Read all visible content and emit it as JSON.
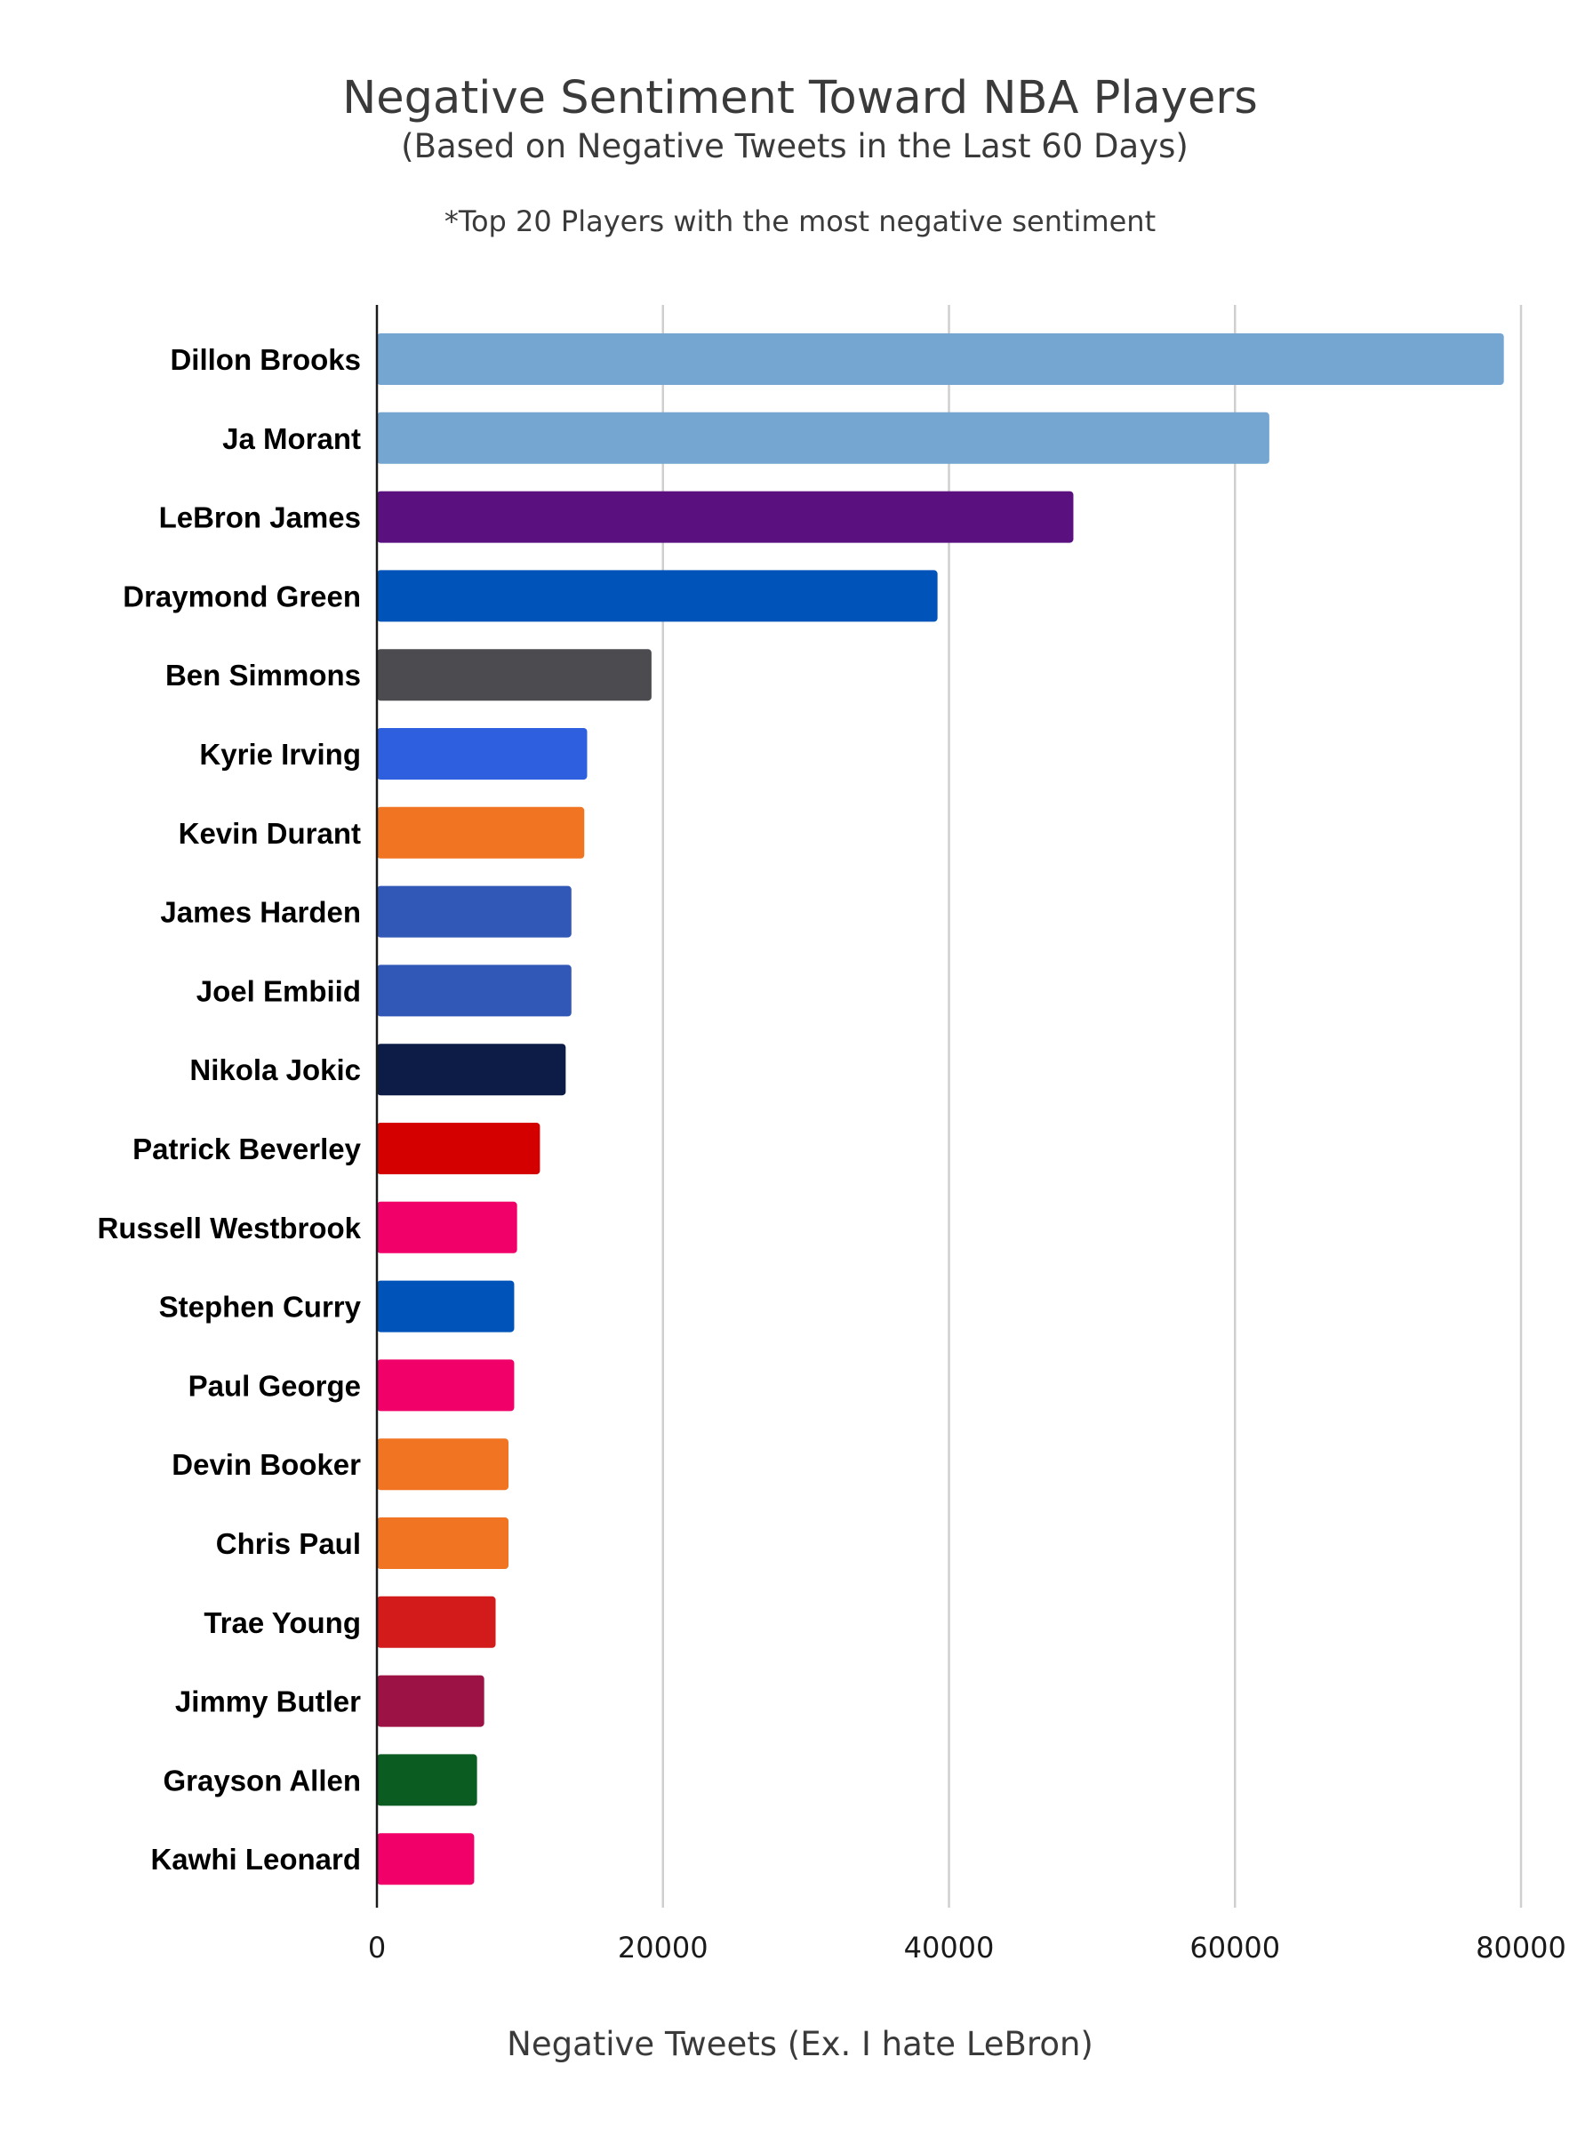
{
  "chart_data": {
    "type": "bar",
    "orientation": "horizontal",
    "title": "Negative Sentiment Toward NBA Players",
    "subtitle": "(Based on Negative Tweets in the Last 60 Days)",
    "note": "*Top 20 Players with the most negative sentiment",
    "xlabel": "Negative Tweets (Ex. I hate LeBron)",
    "ylabel": "",
    "xlim": [
      0,
      80000
    ],
    "xticks": [
      0,
      20000,
      40000,
      60000,
      80000
    ],
    "grid": "vertical",
    "legend": "none",
    "categories": [
      "Dillon Brooks",
      "Ja Morant",
      "LeBron James",
      "Draymond Green",
      "Ben Simmons",
      "Kyrie Irving",
      "Kevin Durant",
      "James Harden",
      "Joel Embiid",
      "Nikola Jokic",
      "Patrick Beverley",
      "Russell Westbrook",
      "Stephen Curry",
      "Paul George",
      "Devin Booker",
      "Chris Paul",
      "Trae Young",
      "Jimmy Butler",
      "Grayson Allen",
      "Kawhi Leonard"
    ],
    "values": [
      78800,
      62400,
      48700,
      39200,
      19200,
      14700,
      14500,
      13600,
      13600,
      13200,
      11400,
      9800,
      9600,
      9600,
      9200,
      9200,
      8300,
      7500,
      7000,
      6800
    ],
    "colors": [
      "#74a6d1",
      "#74a6d1",
      "#5b1080",
      "#0054b9",
      "#4c4b50",
      "#2e5fde",
      "#f07421",
      "#3157b7",
      "#3157b7",
      "#0c1c47",
      "#d40000",
      "#f00068",
      "#0054b9",
      "#f00068",
      "#f07421",
      "#f07421",
      "#d31b1c",
      "#9c1244",
      "#0a5c20",
      "#f00068"
    ]
  }
}
